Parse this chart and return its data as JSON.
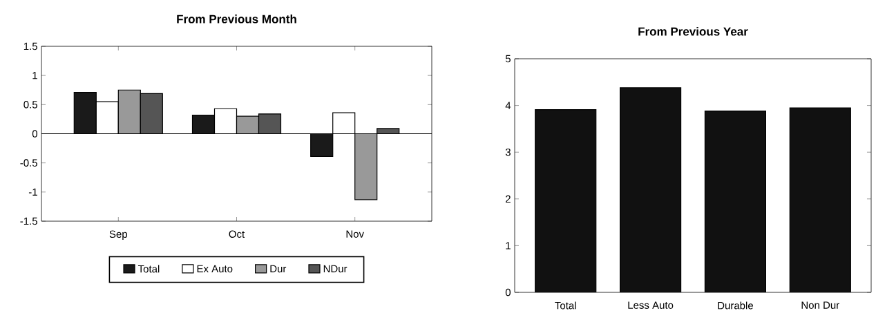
{
  "chart_data": [
    {
      "type": "bar",
      "title": "From Previous Month",
      "categories": [
        "Sep",
        "Oct",
        "Nov"
      ],
      "series": [
        {
          "name": "Total",
          "color": "#1a1a1a",
          "values": [
            0.71,
            0.32,
            -0.39
          ]
        },
        {
          "name": "Ex Auto",
          "color": "#ffffff",
          "values": [
            0.55,
            0.43,
            0.36
          ]
        },
        {
          "name": "Dur",
          "color": "#999999",
          "values": [
            0.75,
            0.3,
            -1.13
          ]
        },
        {
          "name": "NDur",
          "color": "#555555",
          "values": [
            0.69,
            0.34,
            0.09
          ]
        }
      ],
      "ylim": [
        -1.5,
        1.5
      ],
      "yticks": [
        -1.5,
        -1,
        -0.5,
        0,
        0.5,
        1,
        1.5
      ],
      "legend": "bottom"
    },
    {
      "type": "bar",
      "title": "From Previous Year",
      "categories": [
        "Total",
        "Less Auto",
        "Durable",
        "Non Dur"
      ],
      "values": [
        3.91,
        4.38,
        3.88,
        3.95
      ],
      "color": "#111111",
      "ylim": [
        0,
        5
      ],
      "yticks": [
        0,
        1,
        2,
        3,
        4,
        5
      ]
    }
  ]
}
